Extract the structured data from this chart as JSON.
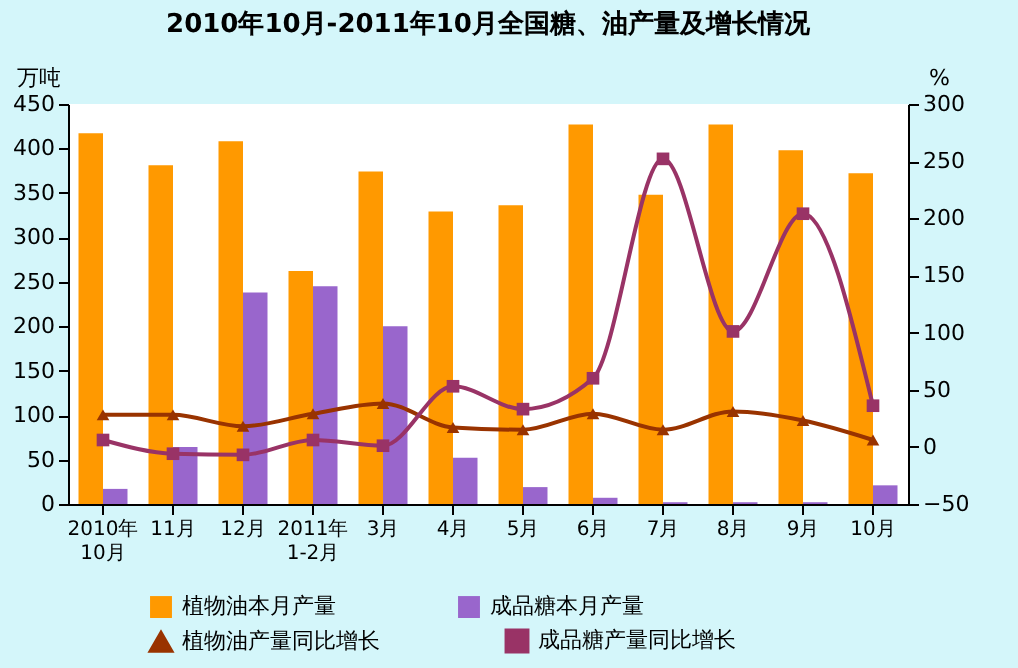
{
  "chart_data": {
    "type": "bar",
    "title": "2010年10月-2011年10月全国糖、油产量及增长情况",
    "ylabel": "万吨",
    "y2label": "%",
    "categories": [
      "2010年10月",
      "11月",
      "12月",
      "2011年1-2月",
      "3月",
      "4月",
      "5月",
      "6月",
      "7月",
      "8月",
      "9月",
      "10月"
    ],
    "series": [
      {
        "name": "植物油本月产量",
        "color": "#ff9900",
        "values": [
          417,
          381,
          408,
          262,
          374,
          329,
          336,
          427,
          348,
          427,
          398,
          372
        ]
      },
      {
        "name": "成品糖本月产量",
        "color": "#9966cc",
        "values": [
          17,
          64,
          238,
          245,
          200,
          52,
          19,
          7,
          2,
          2,
          2,
          21
        ]
      },
      {
        "name": "植物油产量同比增长",
        "type": "line",
        "axis": "y2",
        "marker": "triangle",
        "color": "#993300",
        "values": [
          28,
          28,
          18,
          29,
          38,
          17,
          15,
          29,
          15,
          31,
          23,
          6
        ]
      },
      {
        "name": "成品糖产量同比增长",
        "type": "line",
        "axis": "y2",
        "marker": "square",
        "color": "#993366",
        "values": [
          6,
          -6,
          -7,
          6,
          1,
          53,
          33,
          60,
          252,
          101,
          204,
          36
        ]
      }
    ],
    "ylim": [
      0,
      450
    ],
    "yticks": [
      0,
      50,
      100,
      150,
      200,
      250,
      300,
      350,
      400,
      450
    ],
    "y2lim": [
      -50,
      300
    ],
    "y2ticks": [
      -50,
      0,
      50,
      100,
      150,
      200,
      250,
      300
    ],
    "legend": "bottom",
    "grid": false
  }
}
